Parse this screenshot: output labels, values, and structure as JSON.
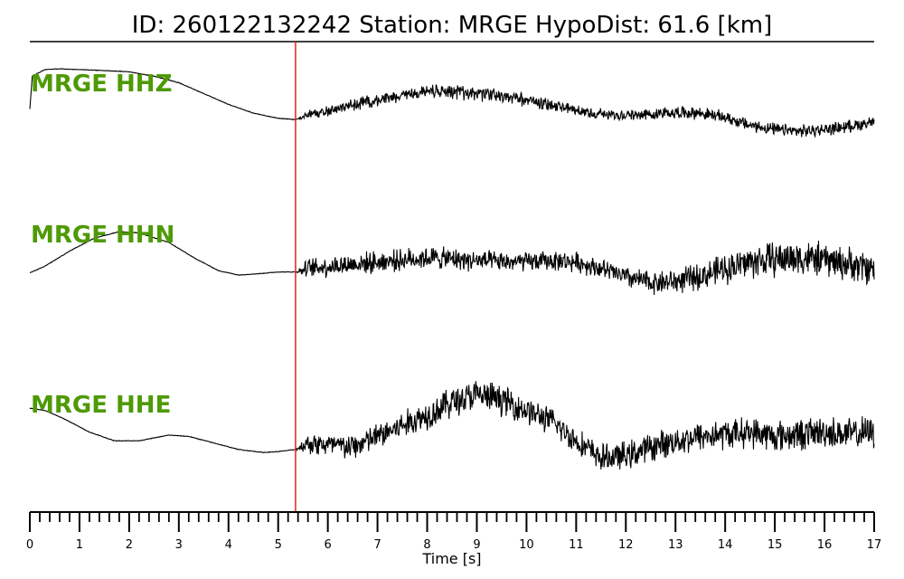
{
  "header": {
    "title": "ID: 260122132242   Station: MRGE   HypoDist:    61.6 [km]"
  },
  "chart_data": {
    "type": "line",
    "title": "ID: 260122132242   Station: MRGE   HypoDist:    61.6 [km]",
    "xlabel": "Time [s]",
    "ylabel": "",
    "xlim": [
      0,
      17
    ],
    "x_ticks": [
      0,
      1,
      2,
      3,
      4,
      5,
      6,
      7,
      8,
      9,
      10,
      11,
      12,
      13,
      14,
      15,
      16,
      17
    ],
    "x_minor_step": 0.2,
    "grid": false,
    "pick_time": 5.35,
    "pick_color": "#e8211c",
    "trace_color": "#000000",
    "label_color": "#4e9a06",
    "series": [
      {
        "name": "MRGE HHZ",
        "x": [
          0,
          0.05,
          0.3,
          0.6,
          1.0,
          1.5,
          2.0,
          2.5,
          3.0,
          3.5,
          4.0,
          4.5,
          5.0,
          5.35,
          5.6,
          6.0,
          6.5,
          7.0,
          7.5,
          8.0,
          8.5,
          9.0,
          9.5,
          10.0,
          10.5,
          11.0,
          11.5,
          12.0,
          12.5,
          13.0,
          13.5,
          14.0,
          14.5,
          15.0,
          15.5,
          16.0,
          16.5,
          17.0
        ],
        "y": [
          0.1,
          0.85,
          1.0,
          1.02,
          1.0,
          0.98,
          0.95,
          0.85,
          0.7,
          0.45,
          0.2,
          0.0,
          -0.12,
          -0.15,
          -0.05,
          0.05,
          0.18,
          0.3,
          0.42,
          0.48,
          0.5,
          0.45,
          0.38,
          0.3,
          0.2,
          0.05,
          -0.02,
          -0.05,
          -0.02,
          0.02,
          0.0,
          -0.1,
          -0.28,
          -0.38,
          -0.42,
          -0.38,
          -0.3,
          -0.2
        ],
        "noise": [
          0,
          0,
          0,
          0,
          0,
          0,
          0,
          0,
          0,
          0,
          0,
          0,
          0,
          0,
          0.12,
          0.12,
          0.14,
          0.14,
          0.14,
          0.16,
          0.16,
          0.16,
          0.16,
          0.15,
          0.14,
          0.13,
          0.13,
          0.13,
          0.13,
          0.14,
          0.14,
          0.14,
          0.14,
          0.14,
          0.14,
          0.14,
          0.14,
          0.14
        ]
      },
      {
        "name": "MRGE HHN",
        "x": [
          0,
          0.3,
          0.8,
          1.3,
          1.8,
          2.2,
          2.8,
          3.3,
          3.8,
          4.2,
          4.6,
          5.0,
          5.35,
          5.6,
          6.0,
          6.5,
          7.0,
          7.5,
          8.0,
          8.5,
          9.0,
          9.5,
          10.0,
          10.5,
          11.0,
          11.5,
          12.0,
          12.5,
          13.0,
          13.5,
          14.0,
          14.5,
          15.0,
          15.5,
          16.0,
          16.5,
          17.0
        ],
        "y": [
          -0.2,
          -0.05,
          0.3,
          0.6,
          0.75,
          0.72,
          0.5,
          0.15,
          -0.15,
          -0.25,
          -0.22,
          -0.18,
          -0.18,
          -0.1,
          -0.05,
          0.0,
          0.05,
          0.1,
          0.15,
          0.12,
          0.08,
          0.05,
          0.05,
          0.08,
          0.05,
          -0.1,
          -0.3,
          -0.42,
          -0.4,
          -0.28,
          -0.1,
          0.05,
          0.12,
          0.15,
          0.1,
          0.0,
          -0.1
        ],
        "noise": [
          0,
          0,
          0,
          0,
          0,
          0,
          0,
          0,
          0,
          0,
          0,
          0,
          0,
          0.22,
          0.24,
          0.24,
          0.24,
          0.24,
          0.26,
          0.24,
          0.24,
          0.22,
          0.22,
          0.22,
          0.22,
          0.22,
          0.24,
          0.26,
          0.28,
          0.3,
          0.34,
          0.38,
          0.4,
          0.4,
          0.38,
          0.38,
          0.38
        ]
      },
      {
        "name": "MRGE HHE",
        "x": [
          0,
          0.3,
          0.7,
          1.2,
          1.7,
          2.2,
          2.8,
          3.2,
          3.7,
          4.2,
          4.7,
          5.0,
          5.35,
          5.6,
          6.0,
          6.5,
          7.0,
          7.5,
          8.0,
          8.5,
          9.0,
          9.5,
          10.0,
          10.5,
          11.0,
          11.5,
          12.0,
          12.5,
          13.0,
          13.5,
          14.0,
          14.5,
          15.0,
          15.5,
          16.0,
          16.5,
          17.0
        ],
        "y": [
          0.6,
          0.55,
          0.35,
          0.05,
          -0.15,
          -0.15,
          -0.02,
          -0.05,
          -0.2,
          -0.35,
          -0.42,
          -0.4,
          -0.35,
          -0.2,
          -0.25,
          -0.3,
          -0.05,
          0.2,
          0.45,
          0.75,
          0.9,
          0.8,
          0.55,
          0.3,
          -0.15,
          -0.55,
          -0.5,
          -0.3,
          -0.15,
          -0.05,
          0.0,
          0.05,
          -0.05,
          0.0,
          0.05,
          0.0,
          0.05
        ],
        "noise": [
          0,
          0,
          0,
          0,
          0,
          0,
          0,
          0,
          0,
          0,
          0,
          0,
          0,
          0.25,
          0.28,
          0.3,
          0.3,
          0.32,
          0.34,
          0.36,
          0.36,
          0.34,
          0.32,
          0.3,
          0.3,
          0.3,
          0.32,
          0.32,
          0.32,
          0.34,
          0.34,
          0.34,
          0.36,
          0.36,
          0.36,
          0.36,
          0.36
        ]
      }
    ]
  }
}
